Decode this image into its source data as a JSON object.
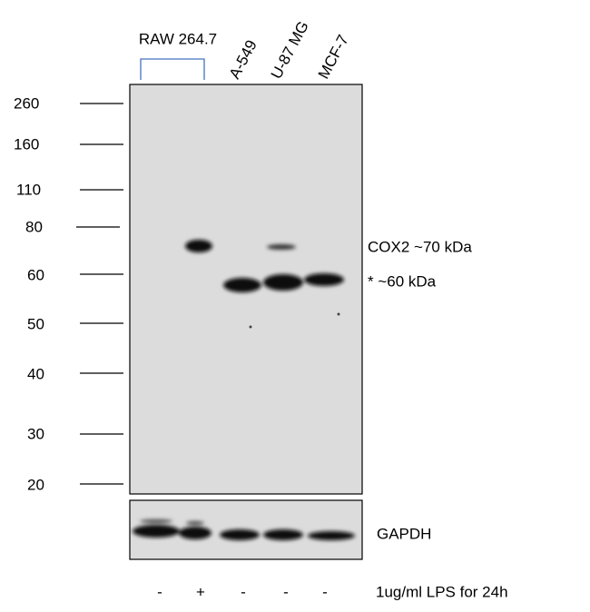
{
  "lanes": {
    "group_label": "RAW 264.7",
    "names": [
      "A-549",
      "U-87 MG",
      "MCF-7"
    ]
  },
  "markers": [
    "260",
    "160",
    "110",
    "80",
    "60",
    "50",
    "40",
    "30",
    "20"
  ],
  "bands": [
    "COX2 ~70 kDa",
    "* ~60 kDa"
  ],
  "loading_control": "GAPDH",
  "treatment": {
    "signs": [
      "-",
      "+",
      "-",
      "-",
      "-"
    ],
    "label": "1ug/ml LPS for 24h"
  }
}
